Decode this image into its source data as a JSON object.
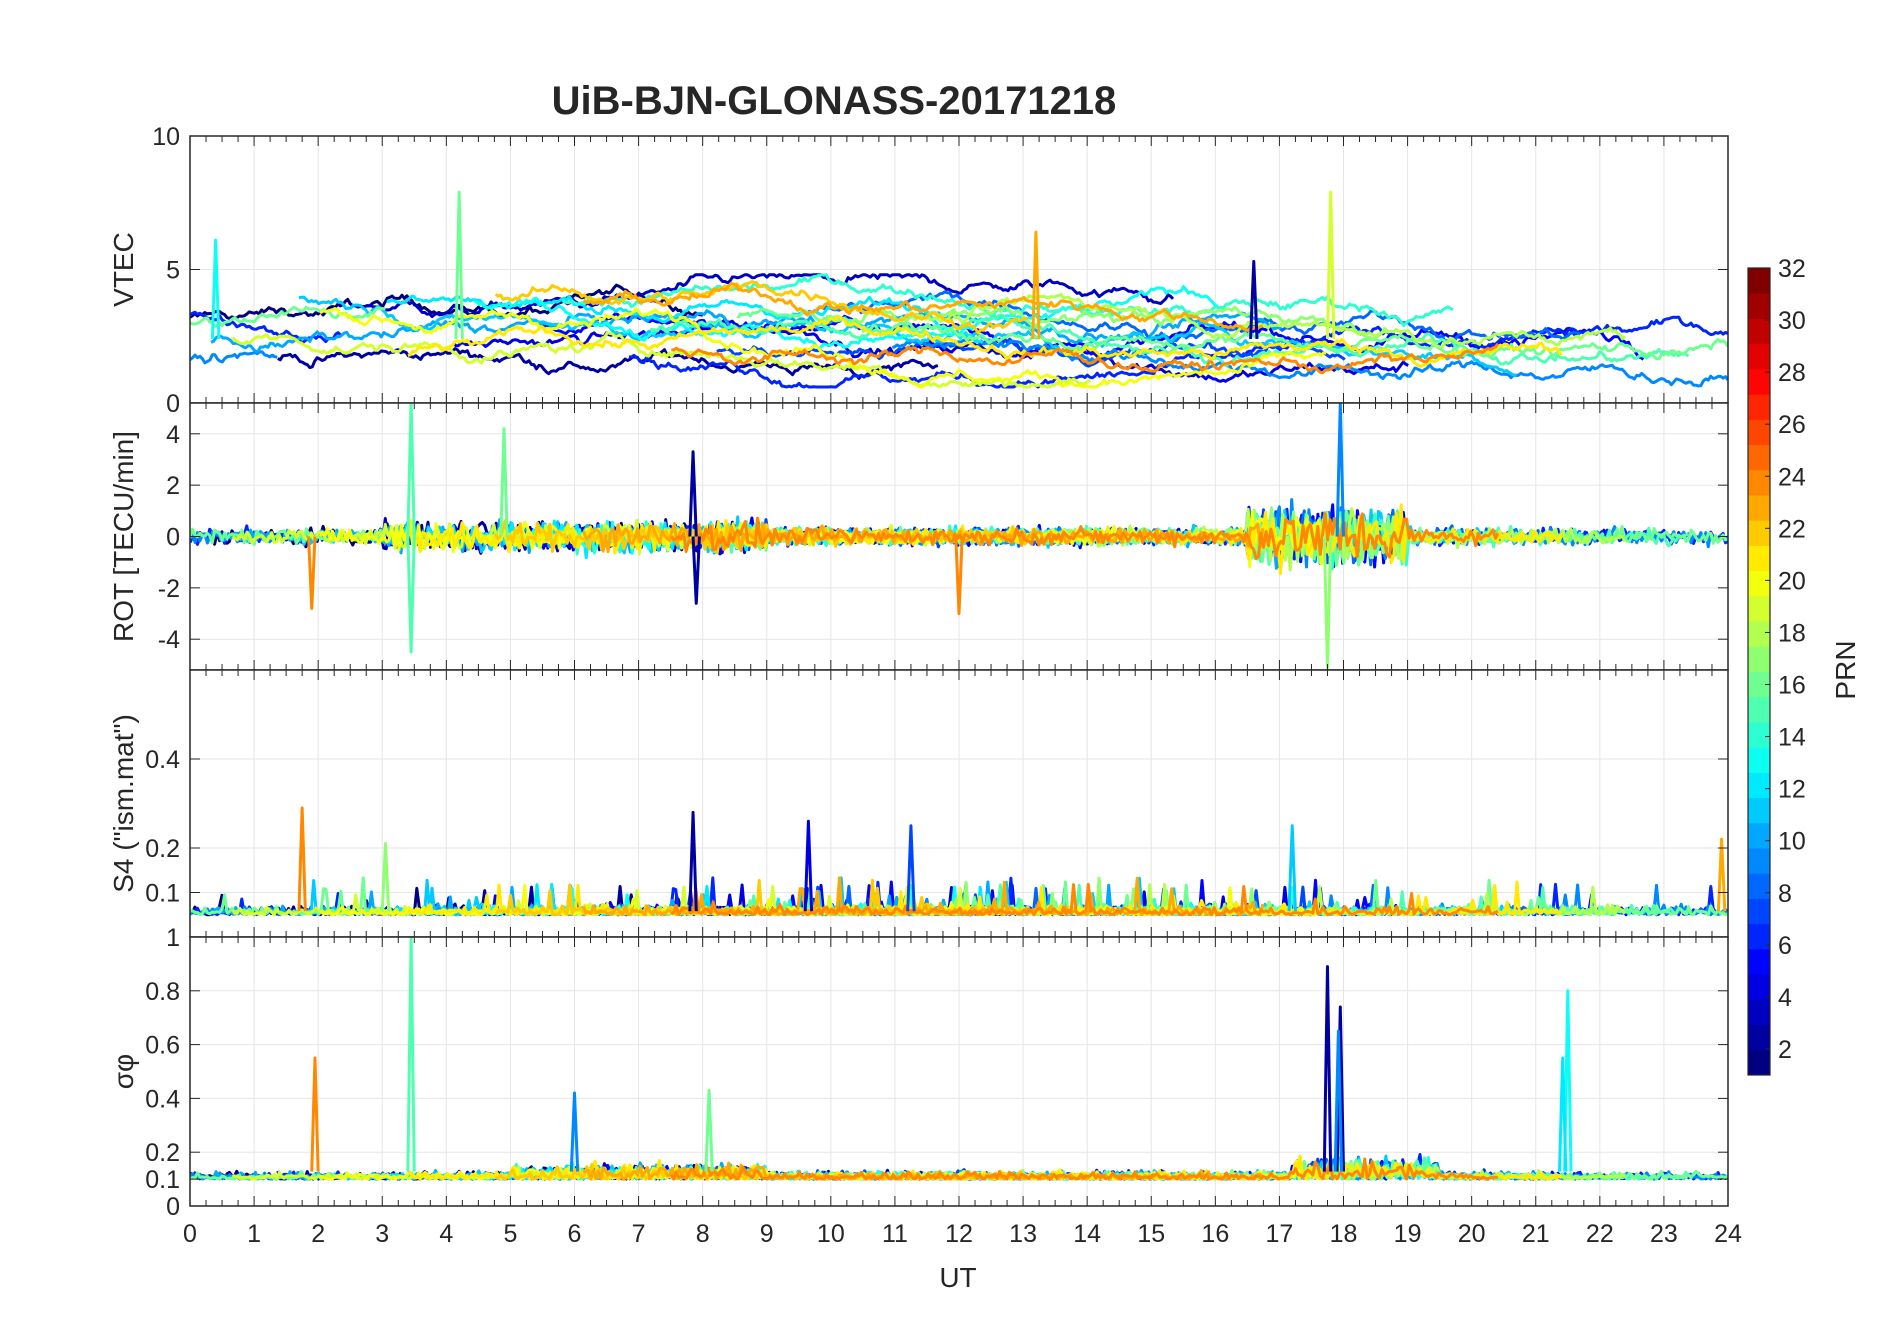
{
  "chart_data": {
    "type": "line",
    "title": "UiB-BJN-GLONASS-20171218",
    "xlabel": "UT",
    "xlim": [
      0,
      24
    ],
    "xticks": [
      "0",
      "1",
      "2",
      "3",
      "4",
      "5",
      "6",
      "7",
      "8",
      "9",
      "10",
      "11",
      "12",
      "13",
      "14",
      "15",
      "16",
      "17",
      "18",
      "19",
      "20",
      "21",
      "22",
      "23",
      "24"
    ],
    "grid": true,
    "panels": [
      {
        "name": "vtec",
        "ylabel": "VTEC",
        "ylim": [
          0,
          10
        ],
        "yticks": [
          {
            "v": 0,
            "label": "0"
          },
          {
            "v": 5,
            "label": "5"
          },
          {
            "v": 10,
            "label": "10"
          }
        ],
        "series_count": 24,
        "baseline_range": [
          1,
          4.5
        ],
        "peaks": [
          {
            "x": 4.2,
            "y": 7.9,
            "prn": 16
          },
          {
            "x": 13.2,
            "y": 6.4,
            "prn": 23
          },
          {
            "x": 16.6,
            "y": 5.3,
            "prn": 2
          },
          {
            "x": 17.8,
            "y": 7.9,
            "prn": 19
          },
          {
            "x": 0.4,
            "y": 6.1,
            "prn": 13
          }
        ]
      },
      {
        "name": "rot",
        "ylabel": "ROT [TECU/min]",
        "ylim": [
          -5.2,
          5.2
        ],
        "yticks": [
          {
            "v": -4,
            "label": "-4"
          },
          {
            "v": -2,
            "label": "-2"
          },
          {
            "v": 0,
            "label": "0"
          },
          {
            "v": 2,
            "label": "2"
          },
          {
            "v": 4,
            "label": "4"
          }
        ],
        "series_count": 24,
        "peaks": [
          {
            "x": 3.45,
            "y": 5.2,
            "prn": 15
          },
          {
            "x": 3.45,
            "y": -4.5,
            "prn": 15
          },
          {
            "x": 17.75,
            "y": -5.1,
            "prn": 17
          },
          {
            "x": 17.95,
            "y": 5.2,
            "prn": 9
          },
          {
            "x": 12.0,
            "y": -3.0,
            "prn": 24
          },
          {
            "x": 7.9,
            "y": -2.6,
            "prn": 2
          },
          {
            "x": 7.85,
            "y": 3.3,
            "prn": 2
          },
          {
            "x": 1.9,
            "y": -2.8,
            "prn": 24
          },
          {
            "x": 4.9,
            "y": 4.2,
            "prn": 16
          }
        ]
      },
      {
        "name": "s4",
        "ylabel": "S4 (\"ism.mat\")",
        "ylim": [
          0,
          0.6
        ],
        "yticks": [
          {
            "v": 0.1,
            "label": "0.1"
          },
          {
            "v": 0.2,
            "label": "0.2"
          },
          {
            "v": 0.4,
            "label": "0.4"
          }
        ],
        "series_count": 24,
        "baseline_range": [
          0.03,
          0.1
        ],
        "peaks": [
          {
            "x": 1.75,
            "y": 0.29,
            "prn": 24
          },
          {
            "x": 7.85,
            "y": 0.28,
            "prn": 2
          },
          {
            "x": 9.65,
            "y": 0.26,
            "prn": 4
          },
          {
            "x": 11.25,
            "y": 0.25,
            "prn": 7
          },
          {
            "x": 17.2,
            "y": 0.25,
            "prn": 11
          },
          {
            "x": 23.9,
            "y": 0.22,
            "prn": 23
          },
          {
            "x": 3.05,
            "y": 0.21,
            "prn": 17
          }
        ]
      },
      {
        "name": "sigma_phi",
        "ylabel": "σφ",
        "ylim": [
          0,
          1
        ],
        "yticks": [
          {
            "v": 0,
            "label": "0"
          },
          {
            "v": 0.1,
            "label": "0.1"
          },
          {
            "v": 0.2,
            "label": "0.2"
          },
          {
            "v": 0.4,
            "label": "0.4"
          },
          {
            "v": 0.6,
            "label": "0.6"
          },
          {
            "v": 0.8,
            "label": "0.8"
          },
          {
            "v": 1,
            "label": "1"
          }
        ],
        "series_count": 24,
        "baseline_range": [
          0.08,
          0.2
        ],
        "peaks": [
          {
            "x": 3.45,
            "y": 1.0,
            "prn": 15
          },
          {
            "x": 1.95,
            "y": 0.55,
            "prn": 24
          },
          {
            "x": 17.75,
            "y": 0.89,
            "prn": 2
          },
          {
            "x": 17.95,
            "y": 0.74,
            "prn": 2
          },
          {
            "x": 17.92,
            "y": 0.65,
            "prn": 9
          },
          {
            "x": 21.5,
            "y": 0.8,
            "prn": 13
          },
          {
            "x": 21.42,
            "y": 0.55,
            "prn": 12
          },
          {
            "x": 8.1,
            "y": 0.43,
            "prn": 16
          },
          {
            "x": 6.0,
            "y": 0.42,
            "prn": 9
          }
        ]
      }
    ],
    "colorbar": {
      "label": "PRN",
      "range": [
        1,
        32
      ],
      "ticks": [
        "2",
        "4",
        "6",
        "8",
        "10",
        "12",
        "14",
        "16",
        "18",
        "20",
        "22",
        "24",
        "26",
        "28",
        "30",
        "32"
      ],
      "colormap": "jet"
    }
  }
}
